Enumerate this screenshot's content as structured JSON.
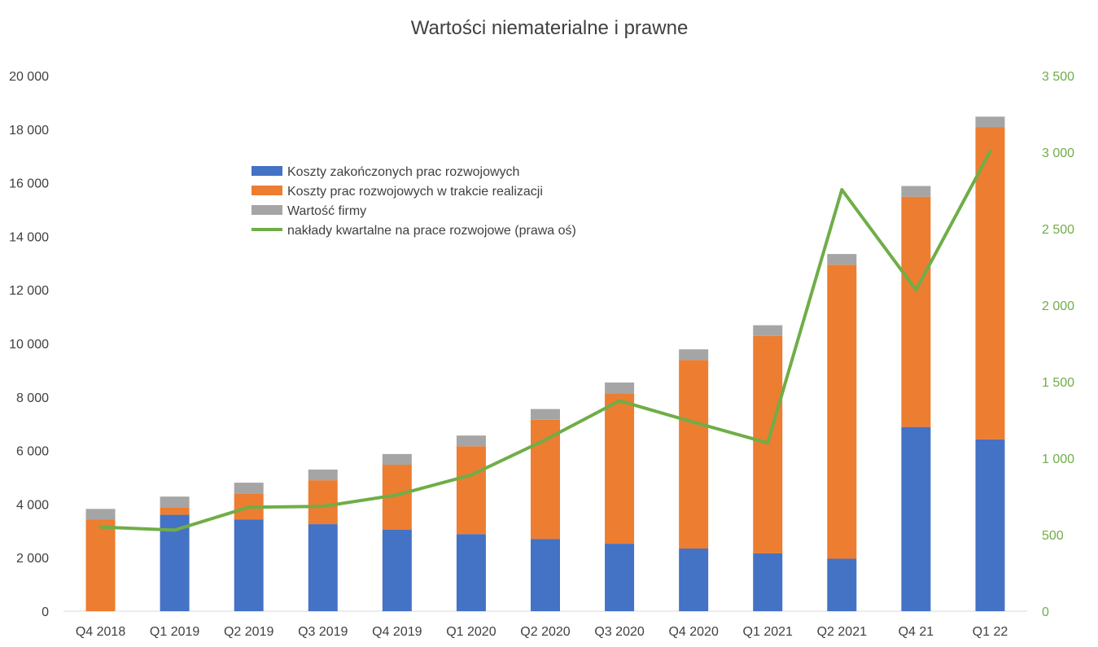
{
  "chart_data": {
    "type": "bar",
    "stacked": true,
    "title": "Wartości niematerialne i prawne",
    "categories": [
      "Q4 2018",
      "Q1 2019",
      "Q2 2019",
      "Q3 2019",
      "Q4 2019",
      "Q1 2020",
      "Q2 2020",
      "Q3 2020",
      "Q4 2020",
      "Q1 2021",
      "Q2 2021",
      "Q4 21",
      "Q1 22"
    ],
    "series": [
      {
        "name": "Koszty zakończonych prac rozwojowych",
        "kind": "bar",
        "axis": "left",
        "color": "#4472c4",
        "values": [
          0,
          3600,
          3430,
          3250,
          3050,
          2880,
          2700,
          2520,
          2340,
          2160,
          1960,
          6880,
          6420
        ]
      },
      {
        "name": "Koszty prac rozwojowych w trakcie realizacji",
        "kind": "bar",
        "axis": "left",
        "color": "#ed7d31",
        "values": [
          3420,
          280,
          970,
          1640,
          2420,
          3280,
          4450,
          5620,
          7040,
          8120,
          10980,
          8600,
          11650
        ]
      },
      {
        "name": "Wartość firmy",
        "kind": "bar",
        "axis": "left",
        "color": "#a5a5a5",
        "values": [
          400,
          400,
          400,
          400,
          400,
          400,
          400,
          400,
          400,
          400,
          400,
          400,
          400
        ]
      },
      {
        "name": "nakłady kwartalne na prace rozwojowe (prawa oś)",
        "kind": "line",
        "axis": "right",
        "color": "#70ad47",
        "values": [
          550,
          530,
          680,
          685,
          760,
          890,
          1120,
          1375,
          1235,
          1100,
          2755,
          2100,
          3005
        ]
      }
    ],
    "y_left": {
      "min": 0,
      "max": 20000,
      "step": 2000,
      "tick_labels": [
        "0",
        "2 000",
        "4 000",
        "6 000",
        "8 000",
        "10 000",
        "12 000",
        "14 000",
        "16 000",
        "18 000",
        "20 000"
      ]
    },
    "y_right": {
      "min": 0,
      "max": 3500,
      "step": 500,
      "tick_labels": [
        "0",
        "500",
        "1 000",
        "1 500",
        "2 000",
        "2 500",
        "3 000",
        "3 500"
      ]
    },
    "grid": false,
    "legend_position": "inside-top-left"
  }
}
